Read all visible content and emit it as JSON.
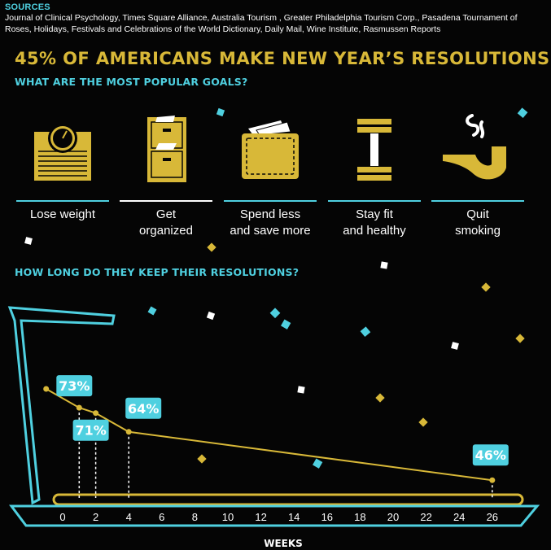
{
  "sources": {
    "heading": "SOURCES",
    "text": "Journal of Clinical Psychology, Times Square Alliance, Australia Tourism , Greater Philadelphia Tourism Corp., Pasadena Tournament of Roses, Holidays, Festivals and Celebrations of the World Dictionary, Daily Mail, Wine Institute, Rasmussen Reports"
  },
  "headline": "45% OF AMERICANS MAKE NEW YEAR’S RESOLUTIONS.",
  "goals_heading": "WHAT ARE THE MOST POPULAR GOALS?",
  "goals": [
    {
      "label_line1": "Lose weight",
      "label_line2": "",
      "icon": "scale-icon"
    },
    {
      "label_line1": "Get",
      "label_line2": "organized",
      "icon": "file-cabinet-icon"
    },
    {
      "label_line1": "Spend less",
      "label_line2": "and save more",
      "icon": "wallet-icon"
    },
    {
      "label_line1": "Stay fit",
      "label_line2": "and healthy",
      "icon": "dumbbell-icon"
    },
    {
      "label_line1": "Quit",
      "label_line2": "smoking",
      "icon": "pipe-icon"
    }
  ],
  "keep_heading": "HOW LONG DO THEY KEEP THEIR RESOLUTIONS?",
  "colors": {
    "gold": "#d8b838",
    "cyan": "#4fd0e0",
    "white": "#ffffff",
    "background": "#050505"
  },
  "chart_data": {
    "type": "line",
    "x": [
      1,
      2,
      4,
      26
    ],
    "y": [
      73,
      71,
      64,
      46
    ],
    "data_labels": [
      "73%",
      "71%",
      "64%",
      "46%"
    ],
    "x_ticks": [
      "0",
      "2",
      "4",
      "6",
      "8",
      "10",
      "12",
      "14",
      "16",
      "18",
      "20",
      "22",
      "24",
      "26"
    ],
    "xlabel": "WEEKS",
    "ylabel": "",
    "title": "",
    "xlim": [
      0,
      26
    ],
    "grid": false,
    "legend": "none"
  }
}
